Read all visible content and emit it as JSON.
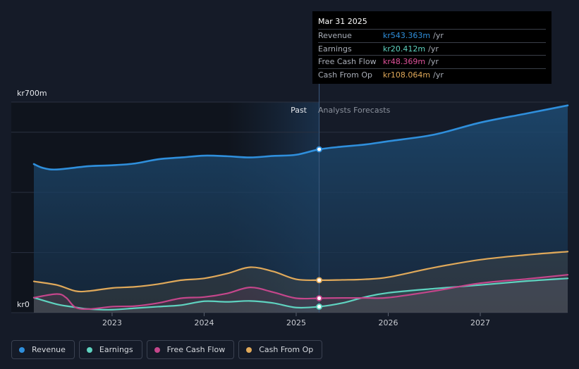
{
  "chart_data": {
    "type": "area",
    "y_max_label": "kr700m",
    "y_min_label": "kr0",
    "ylim": [
      0,
      700
    ],
    "xlim": [
      2022.15,
      2027.95
    ],
    "divider_x": 2025.25,
    "past_label": "Past",
    "forecast_label": "Analysts Forecasts",
    "x_ticks": [
      {
        "value": 2023,
        "label": "2023"
      },
      {
        "value": 2024,
        "label": "2024"
      },
      {
        "value": 2025,
        "label": "2025"
      },
      {
        "value": 2026,
        "label": "2026"
      },
      {
        "value": 2027,
        "label": "2027"
      }
    ],
    "series": [
      {
        "name": "Revenue",
        "color": "#2f8fdc",
        "fill": true,
        "points": [
          [
            2022.15,
            494
          ],
          [
            2022.25,
            481
          ],
          [
            2022.4,
            476
          ],
          [
            2022.75,
            487
          ],
          [
            2023.0,
            490
          ],
          [
            2023.25,
            496
          ],
          [
            2023.5,
            510
          ],
          [
            2023.75,
            516
          ],
          [
            2024.0,
            522
          ],
          [
            2024.25,
            520
          ],
          [
            2024.5,
            516
          ],
          [
            2024.75,
            521
          ],
          [
            2025.0,
            525
          ],
          [
            2025.25,
            543
          ],
          [
            2025.5,
            552
          ],
          [
            2025.75,
            559
          ],
          [
            2026.0,
            570
          ],
          [
            2026.5,
            592
          ],
          [
            2027.0,
            632
          ],
          [
            2027.5,
            662
          ],
          [
            2027.95,
            689
          ]
        ]
      },
      {
        "name": "Earnings",
        "color": "#5fd3c0",
        "fill": false,
        "points": [
          [
            2022.15,
            50
          ],
          [
            2022.4,
            28
          ],
          [
            2022.6,
            18
          ],
          [
            2022.75,
            12
          ],
          [
            2023.0,
            10
          ],
          [
            2023.25,
            15
          ],
          [
            2023.5,
            20
          ],
          [
            2023.75,
            25
          ],
          [
            2024.0,
            38
          ],
          [
            2024.25,
            36
          ],
          [
            2024.5,
            39
          ],
          [
            2024.75,
            32
          ],
          [
            2025.0,
            17
          ],
          [
            2025.25,
            20
          ],
          [
            2025.5,
            32
          ],
          [
            2025.75,
            52
          ],
          [
            2026.0,
            66
          ],
          [
            2026.5,
            80
          ],
          [
            2027.0,
            92
          ],
          [
            2027.5,
            105
          ],
          [
            2027.95,
            114
          ]
        ]
      },
      {
        "name": "Free Cash Flow",
        "color": "#c4468b",
        "fill": false,
        "points": [
          [
            2022.15,
            50
          ],
          [
            2022.4,
            62
          ],
          [
            2022.5,
            50
          ],
          [
            2022.6,
            18
          ],
          [
            2022.75,
            12
          ],
          [
            2023.0,
            20
          ],
          [
            2023.25,
            22
          ],
          [
            2023.5,
            32
          ],
          [
            2023.75,
            48
          ],
          [
            2024.0,
            52
          ],
          [
            2024.25,
            64
          ],
          [
            2024.5,
            84
          ],
          [
            2024.75,
            68
          ],
          [
            2025.0,
            48
          ],
          [
            2025.25,
            48
          ],
          [
            2025.5,
            49
          ],
          [
            2025.75,
            49
          ],
          [
            2026.0,
            50
          ],
          [
            2026.5,
            72
          ],
          [
            2027.0,
            98
          ],
          [
            2027.5,
            112
          ],
          [
            2027.95,
            126
          ]
        ]
      },
      {
        "name": "Cash From Op",
        "color": "#e0a95a",
        "fill": false,
        "points": [
          [
            2022.15,
            104
          ],
          [
            2022.4,
            92
          ],
          [
            2022.6,
            72
          ],
          [
            2022.75,
            72
          ],
          [
            2023.0,
            82
          ],
          [
            2023.25,
            86
          ],
          [
            2023.5,
            95
          ],
          [
            2023.75,
            108
          ],
          [
            2024.0,
            114
          ],
          [
            2024.25,
            130
          ],
          [
            2024.5,
            151
          ],
          [
            2024.75,
            137
          ],
          [
            2025.0,
            111
          ],
          [
            2025.25,
            108
          ],
          [
            2025.5,
            109
          ],
          [
            2025.75,
            111
          ],
          [
            2026.0,
            118
          ],
          [
            2026.5,
            150
          ],
          [
            2027.0,
            176
          ],
          [
            2027.5,
            192
          ],
          [
            2027.95,
            203
          ]
        ]
      }
    ]
  },
  "tooltip": {
    "date": "Mar 31 2025",
    "rows": [
      {
        "label": "Revenue",
        "value": "kr543.363m",
        "unit": "/yr",
        "color": "#2f8fdc"
      },
      {
        "label": "Earnings",
        "value": "kr20.412m",
        "unit": "/yr",
        "color": "#5fd3c0"
      },
      {
        "label": "Free Cash Flow",
        "value": "kr48.369m",
        "unit": "/yr",
        "color": "#e0529b"
      },
      {
        "label": "Cash From Op",
        "value": "kr108.064m",
        "unit": "/yr",
        "color": "#e0a95a"
      }
    ]
  },
  "legend": [
    {
      "label": "Revenue",
      "color": "#2f8fdc"
    },
    {
      "label": "Earnings",
      "color": "#5fd3c0"
    },
    {
      "label": "Free Cash Flow",
      "color": "#c4468b"
    },
    {
      "label": "Cash From Op",
      "color": "#e0a95a"
    }
  ]
}
